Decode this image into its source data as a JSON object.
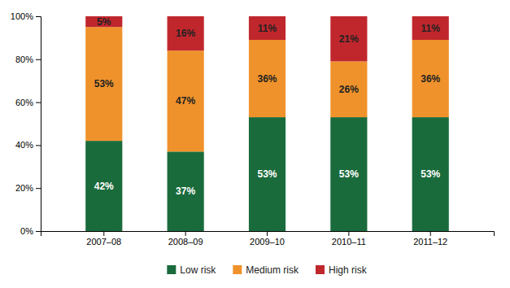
{
  "chart_data": {
    "type": "bar",
    "stacked": true,
    "data_labels": true,
    "categories": [
      "2007–08",
      "2008–09",
      "2009–10",
      "2010–11",
      "2011–12"
    ],
    "series": [
      {
        "name": "Low risk",
        "color": "#1a6b3c",
        "values": [
          42,
          37,
          53,
          53,
          53
        ],
        "value_labels": [
          "42%",
          "37%",
          "53%",
          "53%",
          "53%"
        ]
      },
      {
        "name": "Medium risk",
        "color": "#f0922b",
        "values": [
          53,
          47,
          36,
          26,
          36
        ],
        "value_labels": [
          "53%",
          "47%",
          "36%",
          "26%",
          "36%"
        ]
      },
      {
        "name": "High risk",
        "color": "#c0272d",
        "values": [
          5,
          16,
          11,
          21,
          11
        ],
        "value_labels": [
          "5%",
          "16%",
          "11%",
          "21%",
          "11%"
        ]
      }
    ],
    "ylim": [
      0,
      100
    ],
    "yticks": [
      {
        "value": 0,
        "label": "0%"
      },
      {
        "value": 20,
        "label": "20%"
      },
      {
        "value": 40,
        "label": "40%"
      },
      {
        "value": 60,
        "label": "60%"
      },
      {
        "value": 80,
        "label": "80%"
      },
      {
        "value": 100,
        "label": "100%"
      }
    ],
    "grid": false,
    "legend": "bottom"
  }
}
